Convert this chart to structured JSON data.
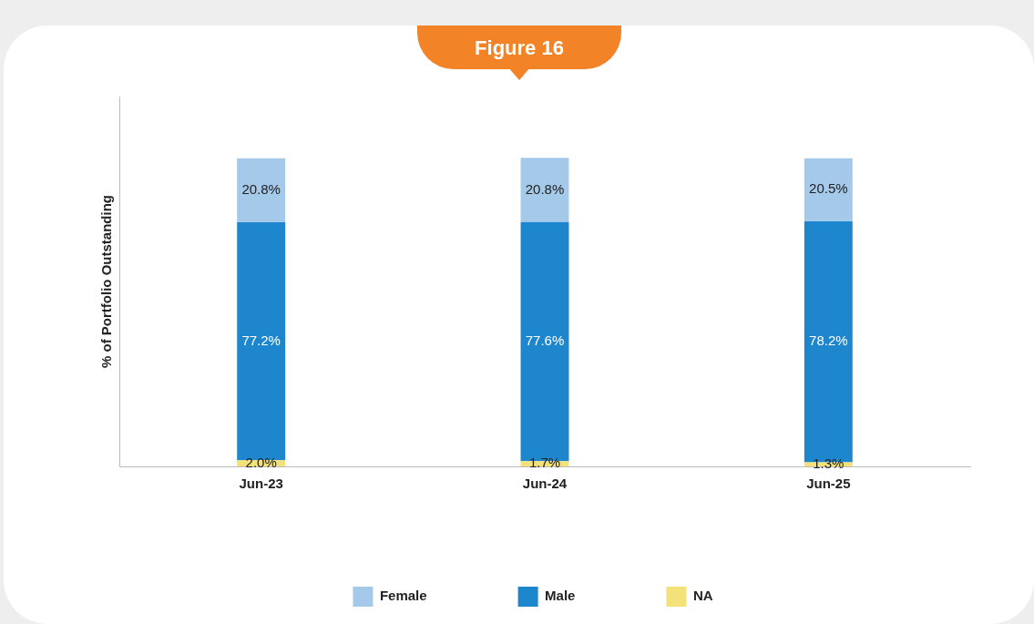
{
  "chart_data": {
    "type": "bar",
    "title": "Figure 16",
    "ylabel": "% of Portfolio Outstanding",
    "categories": [
      "Jun-23",
      "Jun-24",
      "Jun-25"
    ],
    "stacked": true,
    "legend": "bottom",
    "series": [
      {
        "name": "NA",
        "color": "#f3e27a",
        "values": [
          2.0,
          1.7,
          1.3
        ],
        "value_labels": [
          "2.0%",
          "1.7%",
          "1.3%"
        ]
      },
      {
        "name": "Male",
        "color": "#1e86cc",
        "values": [
          77.2,
          77.6,
          78.2
        ],
        "value_labels": [
          "77.2%",
          "77.6%",
          "78.2%"
        ]
      },
      {
        "name": "Female",
        "color": "#a4c9e9",
        "values": [
          20.8,
          20.8,
          20.5
        ],
        "value_labels": [
          "20.8%",
          "20.8%",
          "20.5%"
        ]
      }
    ]
  }
}
